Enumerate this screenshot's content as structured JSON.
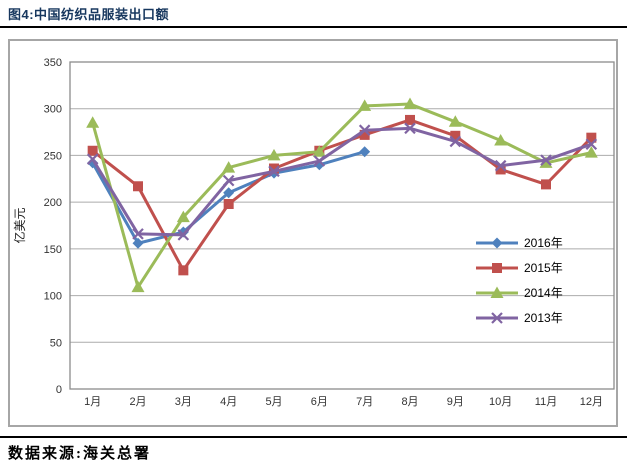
{
  "title": "图4:中国纺织品服装出口额",
  "source": "数据来源:海关总署",
  "chart_data": {
    "type": "line",
    "title": "图4:中国纺织品服装出口额",
    "xlabel": "",
    "ylabel": "亿美元",
    "categories": [
      "1月",
      "2月",
      "3月",
      "4月",
      "5月",
      "6月",
      "7月",
      "8月",
      "9月",
      "10月",
      "11月",
      "12月"
    ],
    "ylim": [
      0,
      350
    ],
    "ytick_step": 50,
    "yticks": [
      0,
      50,
      100,
      150,
      200,
      250,
      300,
      350
    ],
    "grid": true,
    "legend_position": "inside-right",
    "colors": {
      "accent_2016": "#4F81BD",
      "accent_2015": "#C0504D",
      "accent_2014": "#9BBB59",
      "accent_2013": "#8064A2",
      "gridline": "#ABABAB",
      "plot_border": "#8C8C8C",
      "axis_text": "#333333",
      "title_text": "#17375E"
    },
    "series": [
      {
        "name": "2016年",
        "marker": "diamond",
        "color": "#4F81BD",
        "values": [
          242,
          156,
          168,
          210,
          231,
          240,
          254,
          null,
          null,
          null,
          null,
          null
        ]
      },
      {
        "name": "2015年",
        "marker": "square",
        "color": "#C0504D",
        "values": [
          255,
          217,
          127,
          198,
          236,
          255,
          272,
          288,
          271,
          235,
          219,
          269
        ]
      },
      {
        "name": "2014年",
        "marker": "triangle",
        "color": "#9BBB59",
        "values": [
          285,
          109,
          184,
          237,
          250,
          254,
          303,
          305,
          286,
          266,
          242,
          253
        ]
      },
      {
        "name": "2013年",
        "marker": "x",
        "color": "#8064A2",
        "values": [
          246,
          166,
          165,
          223,
          233,
          244,
          277,
          279,
          265,
          239,
          245,
          262
        ]
      }
    ]
  }
}
